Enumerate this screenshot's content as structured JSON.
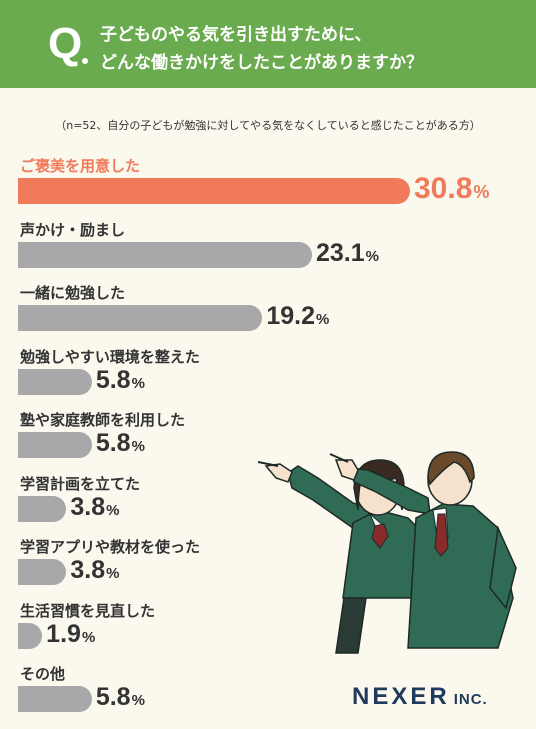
{
  "header": {
    "q_mark": "Q",
    "line1": "子どものやる気を引き出すために、",
    "line2": "どんな働きかけをしたことがありますか？"
  },
  "note": "（n=52、自分の子どもが勉強に対してやる気をなくしていると感じたことがある方）",
  "brand": {
    "name": "NEXER",
    "suffix": "INC."
  },
  "chart_data": {
    "type": "bar",
    "orientation": "horizontal",
    "unit": "%",
    "categories": [
      "ご褒美を用意した",
      "声かけ・励まし",
      "一緒に勉強した",
      "勉強しやすい環境を整えた",
      "塾や家庭教師を利用した",
      "学習計画を立てた",
      "学習アプリや教材を使った",
      "生活習慣を見直した",
      "その他"
    ],
    "values": [
      30.8,
      23.1,
      19.2,
      5.8,
      5.8,
      3.8,
      3.8,
      1.9,
      5.8
    ],
    "highlight_index": 0,
    "colors": {
      "highlight": "#f07a5a",
      "default": "#a8a8ab"
    }
  }
}
